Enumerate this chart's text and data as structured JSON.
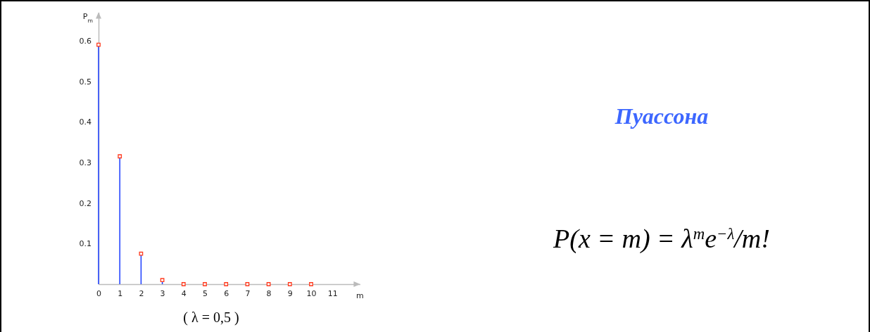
{
  "chart_data": {
    "type": "lollipop",
    "title": "Пуассона",
    "xlabel": "m",
    "ylabel": "P$_{m}$",
    "x": [
      0,
      1,
      2,
      3,
      4,
      5,
      6,
      7,
      8,
      9,
      10
    ],
    "series": [
      {
        "color": "#ff3b1f",
        "values": [
          0.59,
          0.315,
          0.075,
          0.01,
          0,
          0,
          0,
          0,
          0,
          0,
          0
        ]
      }
    ],
    "xlim": [
      0,
      12.3
    ],
    "xticks": [
      0,
      1,
      2,
      3,
      4,
      5,
      6,
      7,
      8,
      9,
      10,
      11
    ],
    "ylim": [
      0,
      0.67
    ],
    "yticks": [
      0.1,
      0.2,
      0.3,
      0.4,
      0.5,
      0.6
    ],
    "marker": "square",
    "annotations": [
      "P(x = m) = λ$^{m}$e$^{−λ}$/m!",
      "( λ = 0,5 )"
    ]
  }
}
